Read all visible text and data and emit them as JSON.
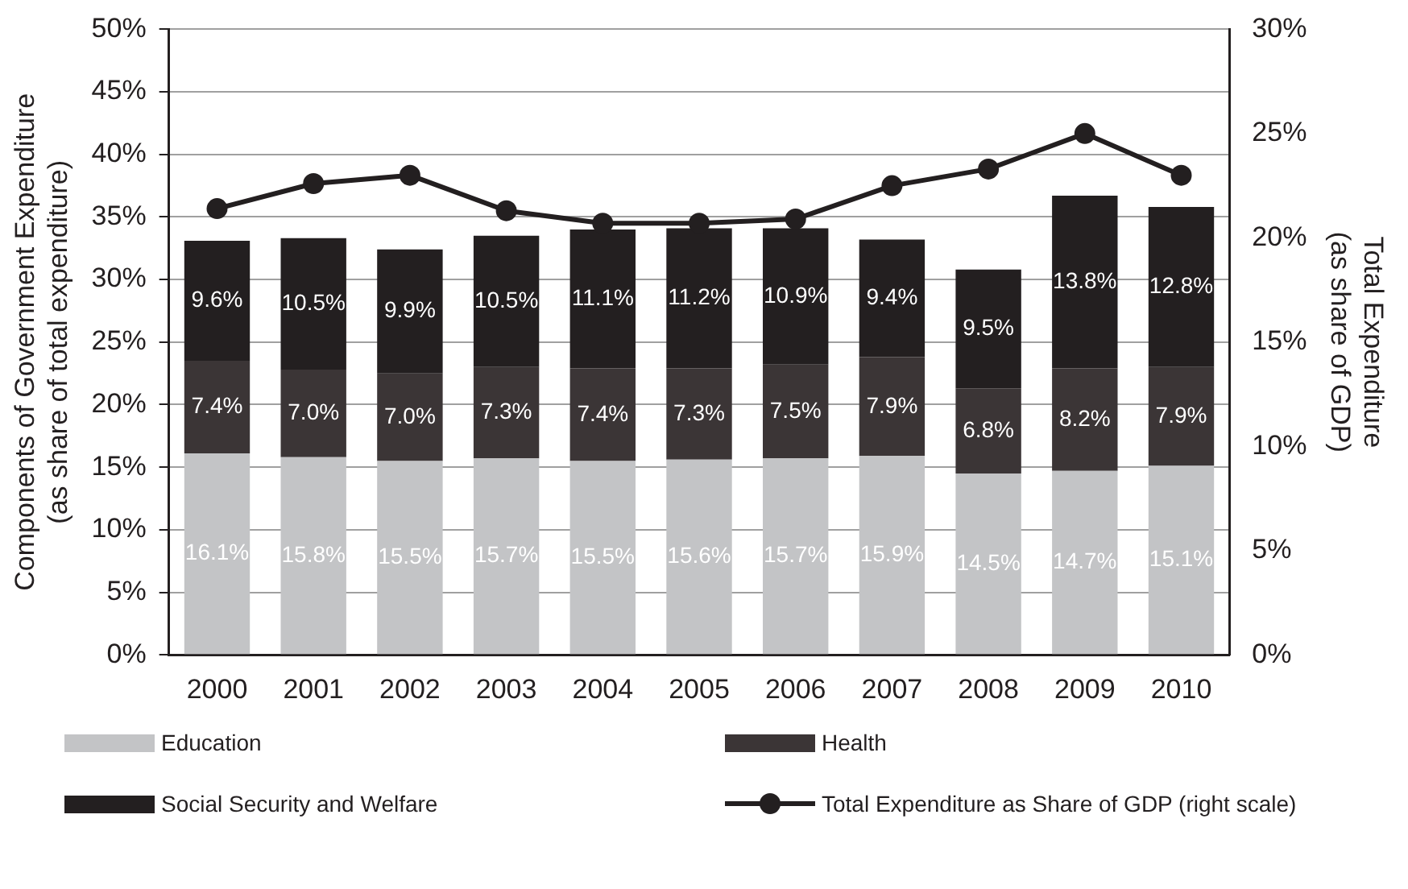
{
  "chart_data": {
    "type": "bar",
    "stacked": true,
    "ylabel": "Components of Government Expenditure\n(as share of total expenditure)",
    "y2label": "Total Expenditure\n(as share of GDP)",
    "categories": [
      "2000",
      "2001",
      "2002",
      "2003",
      "2004",
      "2005",
      "2006",
      "2007",
      "2008",
      "2009",
      "2010"
    ],
    "series": [
      {
        "name": "Education",
        "color": "#c3c4c6",
        "values": [
          16.1,
          15.8,
          15.5,
          15.7,
          15.5,
          15.6,
          15.7,
          15.9,
          14.5,
          14.7,
          15.1
        ],
        "value_labels": [
          "16.1%",
          "15.8%",
          "15.5%",
          "15.7%",
          "15.5%",
          "15.6%",
          "15.7%",
          "15.9%",
          "14.5%",
          "14.7%",
          "15.1%"
        ]
      },
      {
        "name": "Health",
        "color": "#3b3536",
        "values": [
          7.4,
          7.0,
          7.0,
          7.3,
          7.4,
          7.3,
          7.5,
          7.9,
          6.8,
          8.2,
          7.9
        ],
        "value_labels": [
          "7.4%",
          "7.0%",
          "7.0%",
          "7.3%",
          "7.4%",
          "7.3%",
          "7.5%",
          "7.9%",
          "6.8%",
          "8.2%",
          "7.9%"
        ]
      },
      {
        "name": "Social Security and Welfare",
        "color": "#231f20",
        "values": [
          9.6,
          10.5,
          9.9,
          10.5,
          11.1,
          11.2,
          10.9,
          9.4,
          9.5,
          13.8,
          12.8
        ],
        "value_labels": [
          "9.6%",
          "10.5%",
          "9.9%",
          "10.5%",
          "11.1%",
          "11.2%",
          "10.9%",
          "9.4%",
          "9.5%",
          "13.8%",
          "12.8%"
        ]
      },
      {
        "name": "Total Expenditure as Share of GDP (right scale)",
        "type": "line",
        "axis": "y2",
        "color": "#231f20",
        "marker": "circle",
        "values": [
          21.4,
          22.6,
          23.0,
          21.3,
          20.7,
          20.7,
          20.9,
          22.5,
          23.3,
          25.0,
          23.0
        ]
      }
    ],
    "ylim": [
      0,
      50
    ],
    "yticks": [
      {
        "value": 0,
        "label": "0%"
      },
      {
        "value": 5,
        "label": "5%"
      },
      {
        "value": 10,
        "label": "10%"
      },
      {
        "value": 15,
        "label": "15%"
      },
      {
        "value": 20,
        "label": "20%"
      },
      {
        "value": 25,
        "label": "25%"
      },
      {
        "value": 30,
        "label": "30%"
      },
      {
        "value": 35,
        "label": "35%"
      },
      {
        "value": 40,
        "label": "40%"
      },
      {
        "value": 45,
        "label": "45%"
      },
      {
        "value": 50,
        "label": "50%"
      }
    ],
    "y2lim": [
      0,
      30
    ],
    "y2ticks": [
      {
        "value": 0,
        "label": "0%"
      },
      {
        "value": 5,
        "label": "5%"
      },
      {
        "value": 10,
        "label": "10%"
      },
      {
        "value": 15,
        "label": "15%"
      },
      {
        "value": 20,
        "label": "20%"
      },
      {
        "value": 25,
        "label": "25%"
      },
      {
        "value": 30,
        "label": "30%"
      }
    ],
    "grid": "y",
    "legend": "bottom"
  }
}
